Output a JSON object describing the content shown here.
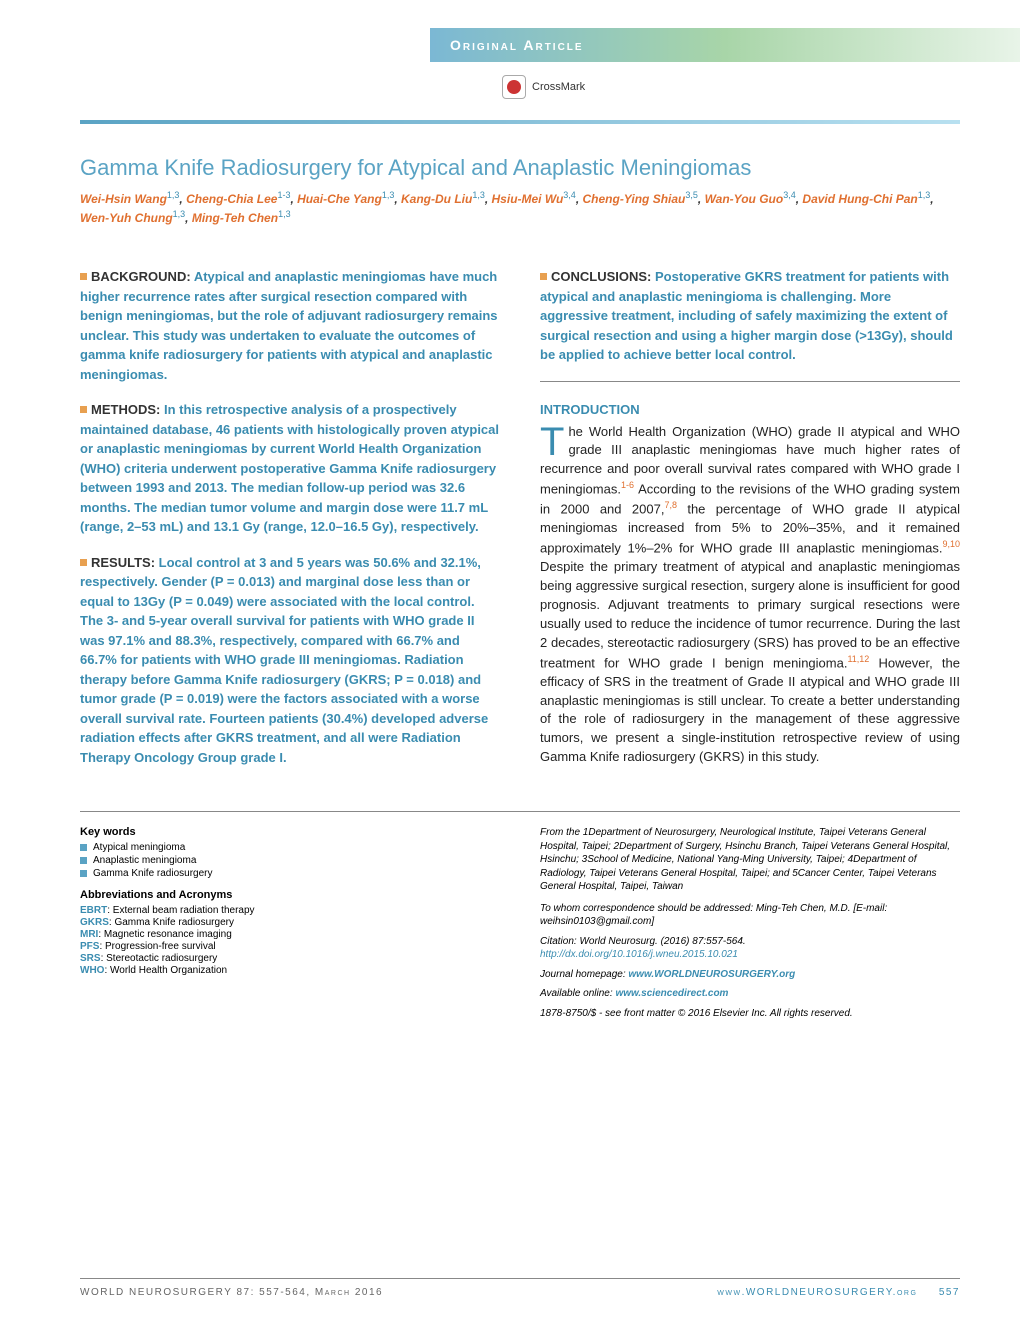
{
  "header": {
    "label": "Original Article",
    "crossmark": "CrossMark"
  },
  "title": "Gamma Knife Radiosurgery for Atypical and Anaplastic Meningiomas",
  "authors": [
    {
      "name": "Wei-Hsin Wang",
      "aff": "1,3"
    },
    {
      "name": "Cheng-Chia Lee",
      "aff": "1-3"
    },
    {
      "name": "Huai-Che Yang",
      "aff": "1,3"
    },
    {
      "name": "Kang-Du Liu",
      "aff": "1,3"
    },
    {
      "name": "Hsiu-Mei Wu",
      "aff": "3,4"
    },
    {
      "name": "Cheng-Ying Shiau",
      "aff": "3,5"
    },
    {
      "name": "Wan-You Guo",
      "aff": "3,4"
    },
    {
      "name": "David Hung-Chi Pan",
      "aff": "1,3"
    },
    {
      "name": "Wen-Yuh Chung",
      "aff": "1,3"
    },
    {
      "name": "Ming-Teh Chen",
      "aff": "1,3"
    }
  ],
  "abstract": {
    "background": {
      "label": "BACKGROUND:",
      "text": "Atypical and anaplastic meningiomas have much higher recurrence rates after surgical resection compared with benign meningiomas, but the role of adjuvant radiosurgery remains unclear. This study was undertaken to evaluate the outcomes of gamma knife radiosurgery for patients with atypical and anaplastic meningiomas."
    },
    "methods": {
      "label": "METHODS:",
      "text": "In this retrospective analysis of a prospectively maintained database, 46 patients with histologically proven atypical or anaplastic meningiomas by current World Health Organization (WHO) criteria underwent postoperative Gamma Knife radiosurgery between 1993 and 2013. The median follow-up period was 32.6 months. The median tumor volume and margin dose were 11.7 mL (range, 2–53 mL) and 13.1 Gy (range, 12.0–16.5 Gy), respectively."
    },
    "results": {
      "label": "RESULTS:",
      "text": "Local control at 3 and 5 years was 50.6% and 32.1%, respectively. Gender (P = 0.013) and marginal dose less than or equal to 13Gy (P = 0.049) were associated with the local control. The 3- and 5-year overall survival for patients with WHO grade II was 97.1% and 88.3%, respectively, compared with 66.7% and 66.7% for patients with WHO grade III meningiomas. Radiation therapy before Gamma Knife radiosurgery (GKRS; P = 0.018) and tumor grade (P = 0.019) were the factors associated with a worse overall survival rate. Fourteen patients (30.4%) developed adverse radiation effects after GKRS treatment, and all were Radiation Therapy Oncology Group grade I."
    },
    "conclusions": {
      "label": "CONCLUSIONS:",
      "text": "Postoperative GKRS treatment for patients with atypical and anaplastic meningioma is challenging. More aggressive treatment, including of safely maximizing the extent of surgical resection and using a higher margin dose (>13Gy), should be applied to achieve better local control."
    }
  },
  "introduction": {
    "heading": "INTRODUCTION",
    "body": "he World Health Organization (WHO) grade II atypical and WHO grade III anaplastic meningiomas have much higher rates of recurrence and poor overall survival rates compared with WHO grade I meningiomas.1-6 According to the revisions of the WHO grading system in 2000 and 2007,7,8 the percentage of WHO grade II atypical meningiomas increased from 5% to 20%–35%, and it remained approximately 1%–2% for WHO grade III anaplastic meningiomas.9,10 Despite the primary treatment of atypical and anaplastic meningiomas being aggressive surgical resection, surgery alone is insufficient for good prognosis. Adjuvant treatments to primary surgical resections were usually used to reduce the incidence of tumor recurrence. During the last 2 decades, stereotactic radiosurgery (SRS) has proved to be an effective treatment for WHO grade I benign meningioma.11,12 However, the efficacy of SRS in the treatment of Grade II atypical and WHO grade III anaplastic meningiomas is still unclear. To create a better understanding of the role of radiosurgery in the management of these aggressive tumors, we present a single-institution retrospective review of using Gamma Knife radiosurgery (GKRS) in this study."
  },
  "keywords": {
    "heading": "Key words",
    "items": [
      "Atypical meningioma",
      "Anaplastic meningioma",
      "Gamma Knife radiosurgery"
    ]
  },
  "abbreviations": {
    "heading": "Abbreviations and Acronyms",
    "items": [
      {
        "ab": "EBRT",
        "def": ": External beam radiation therapy"
      },
      {
        "ab": "GKRS",
        "def": ": Gamma Knife radiosurgery"
      },
      {
        "ab": "MRI",
        "def": ": Magnetic resonance imaging"
      },
      {
        "ab": "PFS",
        "def": ": Progression-free survival"
      },
      {
        "ab": "SRS",
        "def": ": Stereotactic radiosurgery"
      },
      {
        "ab": "WHO",
        "def": ": World Health Organization"
      }
    ]
  },
  "affiliations": "From the 1Department of Neurosurgery, Neurological Institute, Taipei Veterans General Hospital, Taipei; 2Department of Surgery, Hsinchu Branch, Taipei Veterans General Hospital, Hsinchu; 3School of Medicine, National Yang-Ming University, Taipei; 4Department of Radiology, Taipei Veterans General Hospital, Taipei; and 5Cancer Center, Taipei Veterans General Hospital, Taipei, Taiwan",
  "correspondence": "To whom correspondence should be addressed: Ming-Teh Chen, M.D. [E-mail: weihsin0103@gmail.com]",
  "citation": "Citation: World Neurosurg. (2016) 87:557-564.",
  "doi": "http://dx.doi.org/10.1016/j.wneu.2015.10.021",
  "homepage_label": "Journal homepage: ",
  "homepage": "www.WORLDNEUROSURGERY.org",
  "available_label": "Available online: ",
  "available": "www.sciencedirect.com",
  "copyright": "1878-8750/$ - see front matter © 2016 Elsevier Inc. All rights reserved.",
  "footer": {
    "left": "WORLD NEUROSURGERY 87: 557-564, March 2016",
    "right_url": "www.WORLDNEUROSURGERY.org",
    "page": "557"
  },
  "colors": {
    "accent_blue": "#3a8cb0",
    "accent_orange": "#e07030",
    "header_grad_start": "#7bb8d4",
    "header_grad_end": "#e8f4e8"
  }
}
